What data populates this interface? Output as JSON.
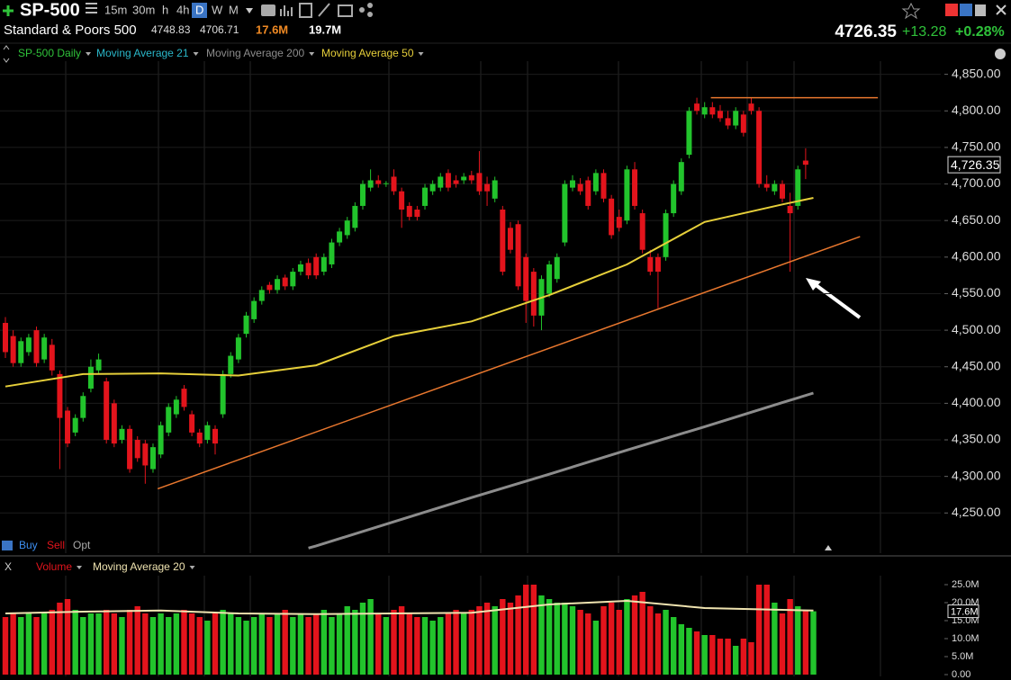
{
  "toolbar": {
    "symbol": "SP-500",
    "intervals": [
      "15m",
      "30m",
      "h",
      "4h",
      "D",
      "W",
      "M"
    ]
  },
  "quote": {
    "name": "Standard & Poors 500",
    "high": "4748.83",
    "low": "4706.71",
    "volume": "17.6M",
    "avg_volume": "19.7M",
    "last": "4726.35",
    "change": "+13.28",
    "change_pct": "+0.28%"
  },
  "trade_buttons": [
    "Buy",
    "Sell",
    "Opt"
  ],
  "close_button": "X",
  "chart_data": [
    {
      "type": "candlestick",
      "grid": true,
      "ylim": [
        4195,
        4868
      ],
      "yticks": [
        {
          "value": 4850,
          "label": "4,850.00"
        },
        {
          "value": 4800,
          "label": "4,800.00"
        },
        {
          "value": 4750,
          "label": "4,750.00"
        },
        {
          "value": 4700,
          "label": "4,700.00"
        },
        {
          "value": 4650,
          "label": "4,650.00"
        },
        {
          "value": 4600,
          "label": "4,600.00"
        },
        {
          "value": 4550,
          "label": "4,550.00"
        },
        {
          "value": 4500,
          "label": "4,500.00"
        },
        {
          "value": 4450,
          "label": "4,450.00"
        },
        {
          "value": 4400,
          "label": "4,400.00"
        },
        {
          "value": 4350,
          "label": "4,350.00"
        },
        {
          "value": 4300,
          "label": "4,300.00"
        },
        {
          "value": 4250,
          "label": "4,250.00"
        }
      ],
      "last_value": {
        "value": 4726.35,
        "label": "4,726.35"
      },
      "series": [
        {
          "name": "SP-500 Daily",
          "color": "#2fc23a",
          "up_color": "#22c42c",
          "down_color": "#e3141c",
          "candles": [
            [
              4510,
              4518,
              4462,
              4470
            ],
            [
              4492,
              4500,
              4450,
              4455
            ],
            [
              4455,
              4490,
              4450,
              4485
            ],
            [
              4470,
              4495,
              4465,
              4490
            ],
            [
              4500,
              4505,
              4450,
              4455
            ],
            [
              4460,
              4495,
              4455,
              4490
            ],
            [
              4480,
              4488,
              4438,
              4445
            ],
            [
              4440,
              4445,
              4310,
              4380
            ],
            [
              4390,
              4395,
              4340,
              4345
            ],
            [
              4360,
              4385,
              4355,
              4380
            ],
            [
              4380,
              4415,
              4375,
              4410
            ],
            [
              4420,
              4460,
              4415,
              4450
            ],
            [
              4445,
              4468,
              4440,
              4460
            ],
            [
              4430,
              4435,
              4345,
              4350
            ],
            [
              4400,
              4405,
              4340,
              4345
            ],
            [
              4350,
              4370,
              4345,
              4365
            ],
            [
              4365,
              4370,
              4305,
              4310
            ],
            [
              4350,
              4355,
              4320,
              4325
            ],
            [
              4345,
              4350,
              4290,
              4315
            ],
            [
              4310,
              4345,
              4305,
              4340
            ],
            [
              4330,
              4375,
              4325,
              4370
            ],
            [
              4360,
              4400,
              4355,
              4395
            ],
            [
              4385,
              4410,
              4380,
              4405
            ],
            [
              4420,
              4425,
              4390,
              4395
            ],
            [
              4385,
              4390,
              4355,
              4360
            ],
            [
              4360,
              4365,
              4340,
              4345
            ],
            [
              4350,
              4375,
              4345,
              4370
            ],
            [
              4365,
              4370,
              4330,
              4345
            ],
            [
              4385,
              4445,
              4380,
              4440
            ],
            [
              4440,
              4470,
              4435,
              4465
            ],
            [
              4460,
              4495,
              4455,
              4490
            ],
            [
              4495,
              4525,
              4490,
              4520
            ],
            [
              4515,
              4545,
              4510,
              4540
            ],
            [
              4540,
              4560,
              4535,
              4555
            ],
            [
              4562,
              4566,
              4550,
              4555
            ],
            [
              4555,
              4575,
              4550,
              4570
            ],
            [
              4572,
              4576,
              4555,
              4560
            ],
            [
              4560,
              4585,
              4555,
              4580
            ],
            [
              4580,
              4595,
              4575,
              4590
            ],
            [
              4592,
              4598,
              4570,
              4575
            ],
            [
              4600,
              4605,
              4570,
              4575
            ],
            [
              4580,
              4605,
              4575,
              4600
            ],
            [
              4590,
              4625,
              4585,
              4620
            ],
            [
              4620,
              4640,
              4615,
              4635
            ],
            [
              4630,
              4655,
              4625,
              4650
            ],
            [
              4640,
              4675,
              4635,
              4670
            ],
            [
              4670,
              4705,
              4665,
              4700
            ],
            [
              4695,
              4720,
              4690,
              4705
            ],
            [
              4705,
              4712,
              4695,
              4700
            ],
            [
              4700,
              4704,
              4696,
              4701
            ],
            [
              4710,
              4720,
              4685,
              4690
            ],
            [
              4690,
              4695,
              4640,
              4665
            ],
            [
              4670,
              4675,
              4650,
              4655
            ],
            [
              4665,
              4670,
              4650,
              4655
            ],
            [
              4670,
              4700,
              4665,
              4695
            ],
            [
              4690,
              4705,
              4685,
              4700
            ],
            [
              4695,
              4715,
              4690,
              4710
            ],
            [
              4715,
              4720,
              4690,
              4695
            ],
            [
              4705,
              4712,
              4695,
              4700
            ],
            [
              4705,
              4715,
              4700,
              4710
            ],
            [
              4712,
              4718,
              4700,
              4705
            ],
            [
              4715,
              4745,
              4685,
              4690
            ],
            [
              4700,
              4710,
              4670,
              4690
            ],
            [
              4680,
              4710,
              4675,
              4705
            ],
            [
              4665,
              4670,
              4575,
              4580
            ],
            [
              4640,
              4648,
              4605,
              4610
            ],
            [
              4645,
              4650,
              4555,
              4560
            ],
            [
              4600,
              4605,
              4510,
              4540
            ],
            [
              4580,
              4585,
              4505,
              4520
            ],
            [
              4520,
              4575,
              4500,
              4570
            ],
            [
              4550,
              4595,
              4545,
              4590
            ],
            [
              4570,
              4605,
              4565,
              4600
            ],
            [
              4620,
              4705,
              4615,
              4700
            ],
            [
              4695,
              4712,
              4690,
              4705
            ],
            [
              4700,
              4708,
              4685,
              4690
            ],
            [
              4705,
              4710,
              4665,
              4670
            ],
            [
              4690,
              4720,
              4685,
              4715
            ],
            [
              4715,
              4720,
              4675,
              4680
            ],
            [
              4680,
              4685,
              4625,
              4630
            ],
            [
              4655,
              4665,
              4635,
              4640
            ],
            [
              4650,
              4725,
              4645,
              4720
            ],
            [
              4720,
              4730,
              4665,
              4670
            ],
            [
              4660,
              4665,
              4605,
              4610
            ],
            [
              4600,
              4610,
              4575,
              4580
            ],
            [
              4600,
              4605,
              4530,
              4580
            ],
            [
              4600,
              4665,
              4595,
              4660
            ],
            [
              4660,
              4705,
              4655,
              4700
            ],
            [
              4690,
              4735,
              4685,
              4730
            ],
            [
              4740,
              4805,
              4735,
              4800
            ],
            [
              4810,
              4818,
              4795,
              4800
            ],
            [
              4795,
              4812,
              4790,
              4805
            ],
            [
              4805,
              4812,
              4790,
              4795
            ],
            [
              4800,
              4808,
              4785,
              4790
            ],
            [
              4790,
              4800,
              4775,
              4780
            ],
            [
              4780,
              4805,
              4775,
              4800
            ],
            [
              4795,
              4800,
              4765,
              4770
            ],
            [
              4810,
              4818,
              4795,
              4800
            ],
            [
              4800,
              4805,
              4695,
              4700
            ],
            [
              4700,
              4712,
              4690,
              4695
            ],
            [
              4690,
              4705,
              4685,
              4700
            ],
            [
              4700,
              4705,
              4675,
              4680
            ],
            [
              4670,
              4688,
              4580,
              4660
            ],
            [
              4670,
              4725,
              4665,
              4720
            ],
            [
              4732,
              4748.83,
              4706.71,
              4726.35
            ]
          ]
        },
        {
          "name": "Moving Average 21",
          "color": "#2ab7c9"
        },
        {
          "name": "Moving Average 200",
          "color": "#8c8c8c",
          "x": [
            39,
            40,
            50,
            60,
            70,
            80,
            90,
            100,
            104
          ],
          "values": [
            4202,
            4205,
            4238,
            4271,
            4303,
            4336,
            4368,
            4401,
            4414
          ]
        },
        {
          "name": "Moving Average 50",
          "color": "#e6cf3a",
          "x": [
            0,
            10,
            20,
            30,
            40,
            50,
            60,
            70,
            80,
            90,
            100,
            104
          ],
          "values": [
            4423,
            4440,
            4441,
            4438,
            4452,
            4492,
            4512,
            4548,
            4590,
            4648,
            4672,
            4681
          ]
        }
      ],
      "trendlines": [
        {
          "color": "#e8772e",
          "x": [
            90.8,
            112.3
          ],
          "values": [
            4818,
            4818
          ]
        },
        {
          "color": "#e8772e",
          "x": [
            19.6,
            110
          ],
          "values": [
            4283,
            4628
          ]
        }
      ]
    },
    {
      "type": "bar",
      "ylim": [
        0,
        27500000
      ],
      "yticks": [
        {
          "value": 25000000,
          "label": "25.0M"
        },
        {
          "value": 20000000,
          "label": "20.0M"
        },
        {
          "value": 15000000,
          "label": "15.0M"
        },
        {
          "value": 10000000,
          "label": "10.0M"
        },
        {
          "value": 5000000,
          "label": "5.0M"
        },
        {
          "value": 0,
          "label": "0.00"
        }
      ],
      "last_value": {
        "value": 17600000,
        "label": "17.6M"
      },
      "series": [
        {
          "name": "Volume",
          "color": "#e3141c",
          "values": [
            16000000,
            17000000,
            16000000,
            17000000,
            16000000,
            17000000,
            18000000,
            20000000,
            21000000,
            18000000,
            16000000,
            17000000,
            17000000,
            18000000,
            17000000,
            16000000,
            18000000,
            19000000,
            17000000,
            16000000,
            17000000,
            16000000,
            17000000,
            18000000,
            17000000,
            16000000,
            15000000,
            17000000,
            18000000,
            17000000,
            16000000,
            15000000,
            16000000,
            17000000,
            16000000,
            17000000,
            18000000,
            16000000,
            17000000,
            16000000,
            17000000,
            18000000,
            16000000,
            17000000,
            19000000,
            18000000,
            20000000,
            21000000,
            17000000,
            16000000,
            18000000,
            19000000,
            17000000,
            16000000,
            16000000,
            15000000,
            16000000,
            17000000,
            18000000,
            17000000,
            18000000,
            19000000,
            20000000,
            19000000,
            21000000,
            20000000,
            22000000,
            25000000,
            25000000,
            22000000,
            21000000,
            20000000,
            20000000,
            19000000,
            18000000,
            17000000,
            15000000,
            19000000,
            20000000,
            18000000,
            21000000,
            22000000,
            23000000,
            19000000,
            17000000,
            18000000,
            16000000,
            14000000,
            13000000,
            12000000,
            11000000,
            11000000,
            10000000,
            10000000,
            8000000,
            10000000,
            9000000,
            25000000,
            25000000,
            20000000,
            17000000,
            21000000,
            19000000,
            18000000,
            17600000
          ]
        },
        {
          "name": "Moving Average 20",
          "color": "#efe3b0",
          "x": [
            0,
            10,
            20,
            30,
            40,
            50,
            60,
            70,
            80,
            90,
            100,
            104
          ],
          "values": [
            17000000,
            17500000,
            17800000,
            17000000,
            16800000,
            17000000,
            17200000,
            19500000,
            20500000,
            18500000,
            18000000,
            17800000
          ]
        }
      ]
    }
  ]
}
